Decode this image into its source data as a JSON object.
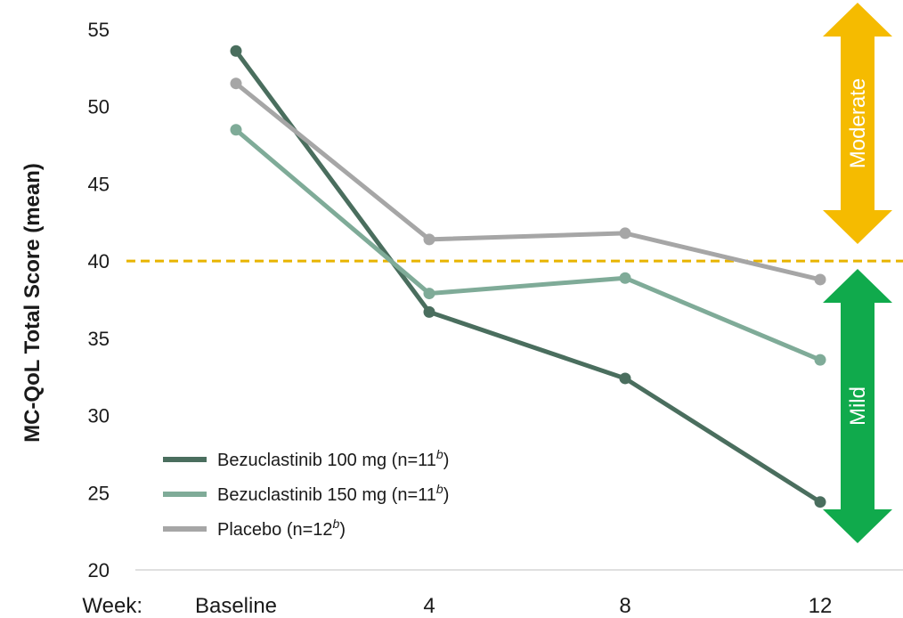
{
  "chart_data": {
    "type": "line",
    "categories": [
      "Baseline",
      "4",
      "8",
      "12"
    ],
    "x_prefix_label": "Week:",
    "ylabel": "MC-QoL Total Score (mean)",
    "ylim": [
      20,
      55
    ],
    "yticks": [
      20,
      25,
      30,
      35,
      40,
      45,
      50,
      55
    ],
    "ytick_labels": [
      "20",
      "25",
      "30",
      "35",
      "40",
      "45",
      "50",
      "55"
    ],
    "series": [
      {
        "name": "Bezuclastinib 100 mg (n=11",
        "sup": "b",
        "close": ")",
        "values": [
          53.6,
          36.7,
          32.4,
          24.4
        ],
        "color": "#4a6e5e"
      },
      {
        "name": "Bezuclastinib 150 mg (n=11",
        "sup": "b",
        "close": ")",
        "values": [
          48.5,
          37.9,
          38.9,
          33.6
        ],
        "color": "#7fab98"
      },
      {
        "name": "Placebo (n=12",
        "sup": "b",
        "close": ")",
        "values": [
          51.5,
          41.4,
          41.8,
          38.8
        ],
        "color": "#a6a6a6"
      }
    ],
    "threshold": {
      "value": 40,
      "color": "#e8b400"
    },
    "zones": [
      {
        "label": "Moderate",
        "from": 40,
        "to": 56,
        "color": "#f5bb00"
      },
      {
        "label": "Mild",
        "from": 20,
        "to": 40,
        "color": "#10aa4c"
      }
    ],
    "grid": false,
    "legend_position": "bottom-left"
  }
}
